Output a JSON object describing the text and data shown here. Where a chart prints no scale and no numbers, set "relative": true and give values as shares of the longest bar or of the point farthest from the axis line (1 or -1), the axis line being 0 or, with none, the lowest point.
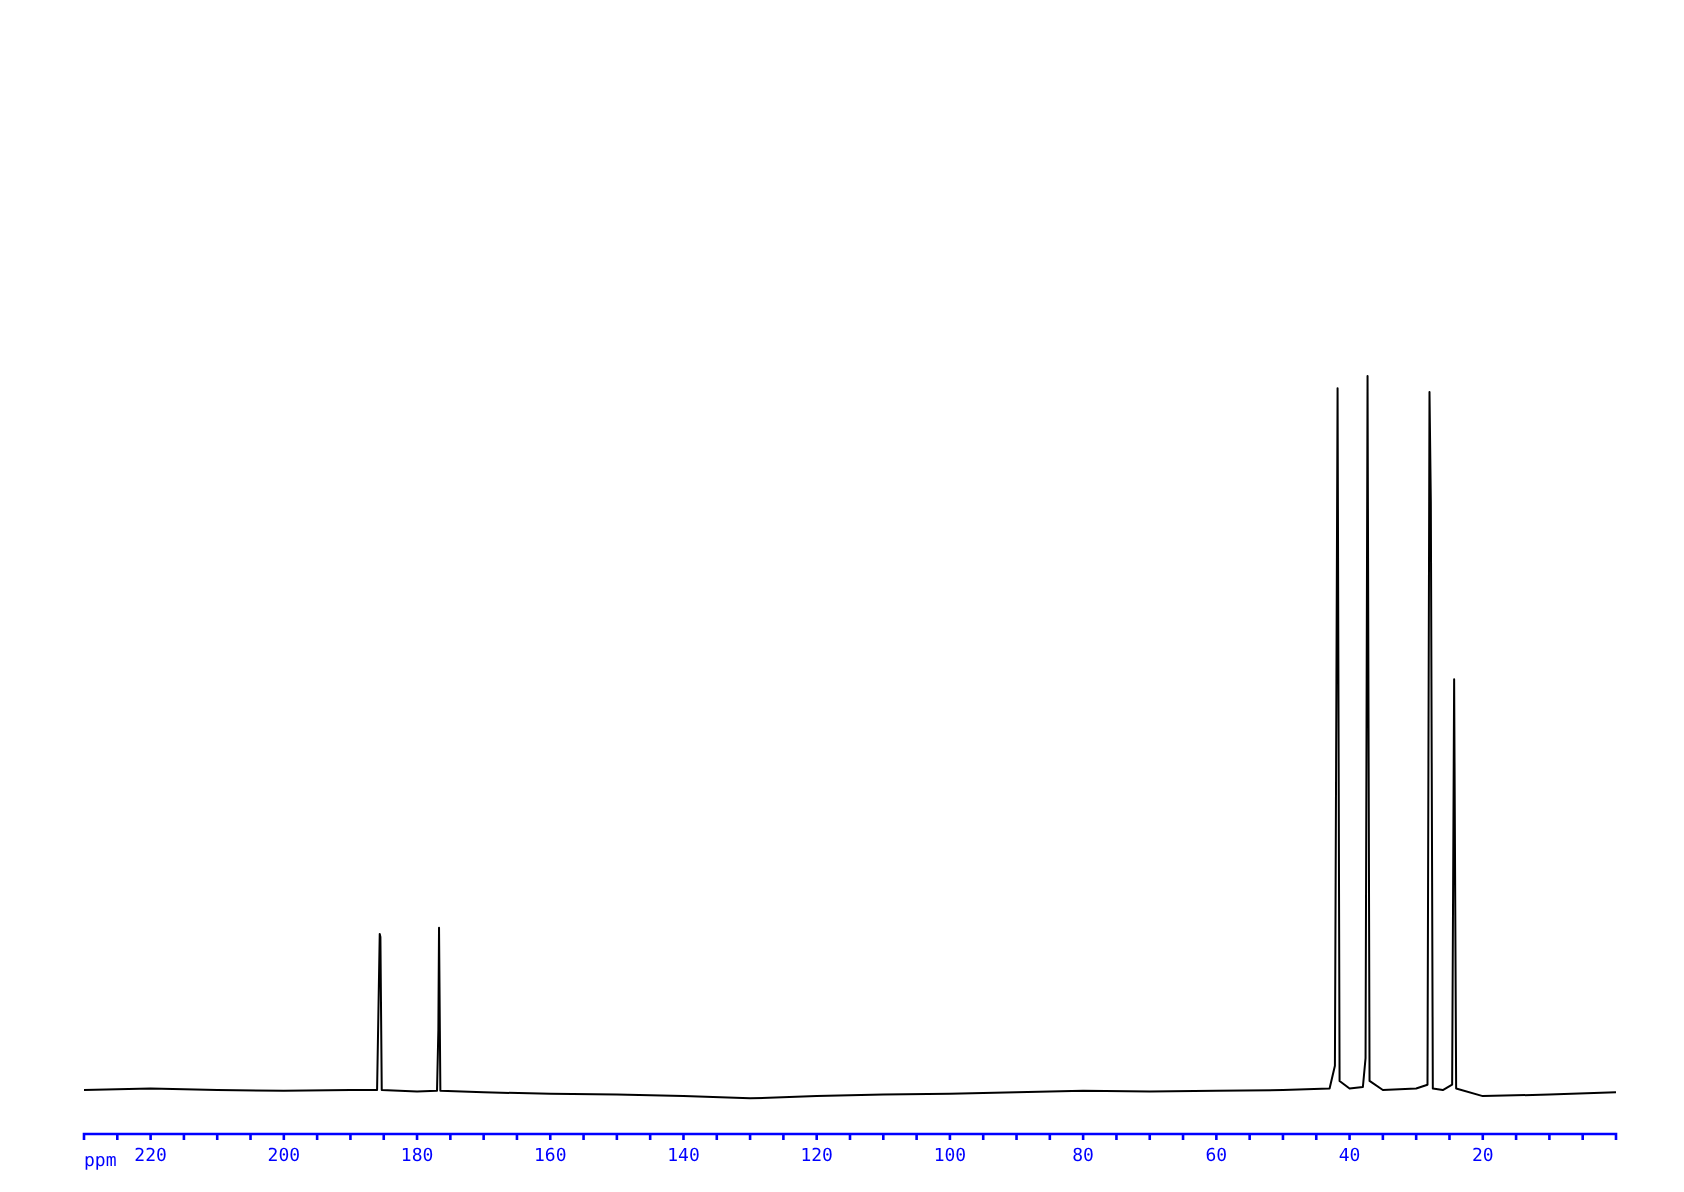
{
  "chart_data": {
    "type": "line",
    "relative": true,
    "xlabel": "ppm",
    "xlim": [
      230,
      0
    ],
    "xticks": [
      {
        "value": 225,
        "label": null
      },
      220,
      {
        "value": 215,
        "label": null
      },
      {
        "value": 210,
        "label": null
      },
      {
        "value": 205,
        "label": null
      },
      200,
      {
        "value": 195,
        "label": null
      },
      {
        "value": 190,
        "label": null
      },
      {
        "value": 185,
        "label": null
      },
      180,
      {
        "value": 175,
        "label": null
      },
      {
        "value": 170,
        "label": null
      },
      {
        "value": 165,
        "label": null
      },
      160,
      {
        "value": 155,
        "label": null
      },
      {
        "value": 150,
        "label": null
      },
      {
        "value": 145,
        "label": null
      },
      140,
      {
        "value": 135,
        "label": null
      },
      {
        "value": 130,
        "label": null
      },
      {
        "value": 125,
        "label": null
      },
      120,
      {
        "value": 115,
        "label": null
      },
      {
        "value": 110,
        "label": null
      },
      {
        "value": 105,
        "label": null
      },
      100,
      {
        "value": 95,
        "label": null
      },
      {
        "value": 90,
        "label": null
      },
      {
        "value": 85,
        "label": null
      },
      80,
      {
        "value": 75,
        "label": null
      },
      {
        "value": 70,
        "label": null
      },
      {
        "value": 65,
        "label": null
      },
      60,
      {
        "value": 55,
        "label": null
      },
      {
        "value": 50,
        "label": null
      },
      {
        "value": 45,
        "label": null
      },
      40,
      {
        "value": 35,
        "label": null
      },
      {
        "value": 30,
        "label": null
      },
      {
        "value": 25,
        "label": null
      },
      20,
      {
        "value": 15,
        "label": null
      },
      {
        "value": 10,
        "label": null
      },
      {
        "value": 5,
        "label": null
      }
    ],
    "grid": false,
    "series": [
      {
        "color": "#000000",
        "x": [
          230,
          220,
          210,
          200,
          190,
          186,
          185.6,
          185.5,
          185.3,
          180,
          177,
          176.8,
          176.7,
          176.5,
          170,
          160,
          150,
          140,
          130,
          120,
          110,
          100,
          90,
          80,
          70,
          60,
          50,
          43,
          42.2,
          41.8,
          41.5,
          40,
          38,
          37.6,
          37.3,
          37,
          35,
          30,
          28.3,
          28,
          27.8,
          27.5,
          26,
          24.6,
          24.3,
          24,
          20,
          10,
          0
        ],
        "values": [
          0.058,
          0.06,
          0.058,
          0.057,
          0.058,
          0.058,
          0.264,
          0.26,
          0.058,
          0.056,
          0.057,
          0.137,
          0.272,
          0.057,
          0.055,
          0.053,
          0.052,
          0.05,
          0.047,
          0.05,
          0.052,
          0.053,
          0.055,
          0.057,
          0.056,
          0.057,
          0.058,
          0.06,
          0.09,
          0.984,
          0.07,
          0.06,
          0.062,
          0.1,
          1,
          0.07,
          0.058,
          0.06,
          0.065,
          0.979,
          0.834,
          0.06,
          0.058,
          0.065,
          0.6,
          0.06,
          0.05,
          0.052,
          0.055
        ]
      }
    ]
  }
}
